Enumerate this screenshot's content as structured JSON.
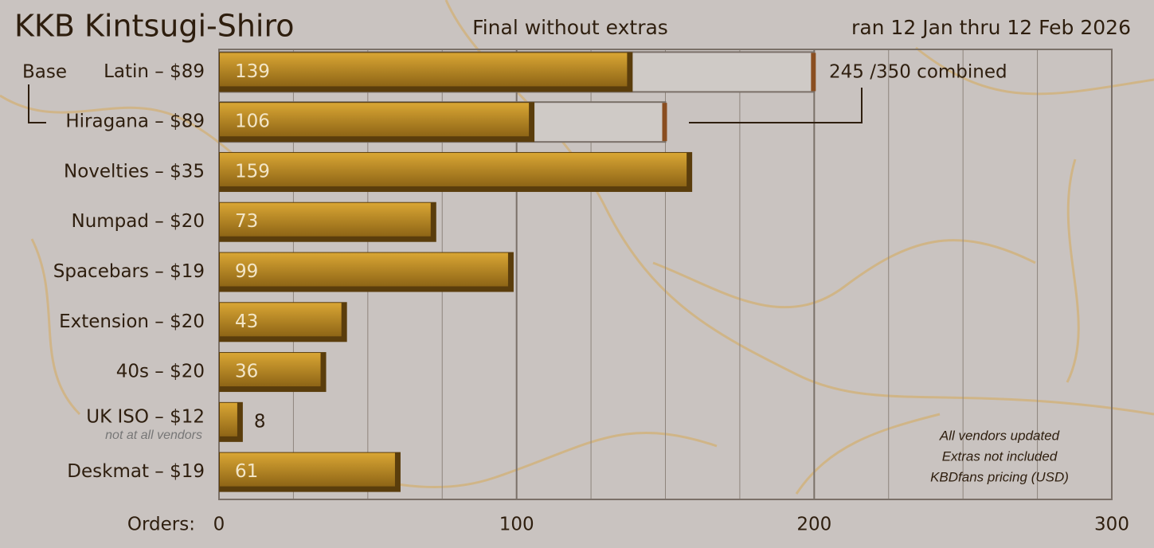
{
  "chart_data": {
    "type": "bar",
    "title": "KKB Kintsugi-Shiro",
    "subtitle": "Final without extras",
    "date_range": "ran 12 Jan thru 12 Feb 2026",
    "x_label": "Orders:",
    "group_label": "Base",
    "categories": [
      "Latin – $89",
      "Hiragana – $89",
      "Novelties – $35",
      "Numpad – $20",
      "Spacebars – $19",
      "Extension – $20",
      "40s – $20",
      "UK ISO – $12",
      "Deskmat – $19"
    ],
    "category_notes": [
      null,
      null,
      null,
      null,
      null,
      null,
      null,
      "not at all vendors",
      null
    ],
    "values": [
      139,
      106,
      159,
      73,
      99,
      43,
      36,
      8,
      61
    ],
    "targets": [
      200,
      150,
      null,
      null,
      null,
      null,
      null,
      null,
      null
    ],
    "target_annotation": "245 /350 combined",
    "notes": [
      "All vendors updated",
      "Extras not included",
      "KBDfans pricing (USD)"
    ],
    "color": "#c28e28",
    "xlim": [
      0,
      300
    ],
    "xticks": [
      0,
      100,
      200,
      300
    ],
    "minor_xticks": [
      25,
      50,
      75,
      125,
      150,
      175,
      225,
      250,
      275
    ],
    "grid": true
  }
}
